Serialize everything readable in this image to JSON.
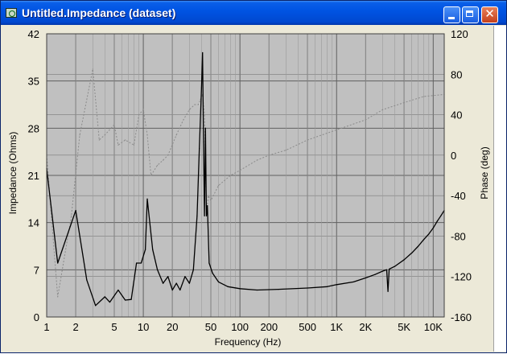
{
  "window": {
    "title": "Untitled.Impedance (dataset)",
    "controls": [
      "minimize",
      "maximize",
      "close"
    ],
    "colors": {
      "titlebar": "#0054e3",
      "plot_background": "#c0c0c0",
      "grid": "#606060",
      "primary_trace": "#000000",
      "secondary_trace": "#8a8a8a"
    }
  },
  "chart_data": {
    "type": "line",
    "xlabel": "Frequency (Hz)",
    "ylabel": "Impedance (Ohms)",
    "y2label": "Phase (deg)",
    "xscale": "log",
    "xlim": [
      1,
      13000
    ],
    "ylim": [
      0,
      42
    ],
    "y2lim": [
      -160,
      120
    ],
    "grid": true,
    "x_ticks": [
      {
        "value": 1,
        "label": "1"
      },
      {
        "value": 2,
        "label": "2"
      },
      {
        "value": 5,
        "label": "5"
      },
      {
        "value": 10,
        "label": "10"
      },
      {
        "value": 20,
        "label": "20"
      },
      {
        "value": 50,
        "label": "50"
      },
      {
        "value": 100,
        "label": "100"
      },
      {
        "value": 200,
        "label": "200"
      },
      {
        "value": 500,
        "label": "500"
      },
      {
        "value": 1000,
        "label": "1K"
      },
      {
        "value": 2000,
        "label": "2K"
      },
      {
        "value": 5000,
        "label": "5K"
      },
      {
        "value": 10000,
        "label": "10K"
      }
    ],
    "y_ticks": [
      {
        "value": 0,
        "label": "0"
      },
      {
        "value": 7,
        "label": "7"
      },
      {
        "value": 14,
        "label": "14"
      },
      {
        "value": 21,
        "label": "21"
      },
      {
        "value": 28,
        "label": "28"
      },
      {
        "value": 35,
        "label": "35"
      },
      {
        "value": 42,
        "label": "42"
      }
    ],
    "y2_ticks": [
      {
        "value": -160,
        "label": "-160"
      },
      {
        "value": -120,
        "label": "-120"
      },
      {
        "value": -80,
        "label": "-80"
      },
      {
        "value": -40,
        "label": "-40"
      },
      {
        "value": 0,
        "label": "0"
      },
      {
        "value": 40,
        "label": "40"
      },
      {
        "value": 80,
        "label": "80"
      },
      {
        "value": 120,
        "label": "120"
      }
    ],
    "series": [
      {
        "axis": "left",
        "style": "solid",
        "points": [
          [
            1.0,
            22
          ],
          [
            1.3,
            8
          ],
          [
            2.0,
            15.8
          ],
          [
            2.6,
            5.5
          ],
          [
            3.2,
            1.7
          ],
          [
            4.0,
            3.0
          ],
          [
            4.5,
            2.2
          ],
          [
            5.5,
            4.0
          ],
          [
            6.5,
            2.5
          ],
          [
            7.5,
            2.6
          ],
          [
            8.5,
            8
          ],
          [
            9.5,
            8
          ],
          [
            10.5,
            10
          ],
          [
            11,
            17.5
          ],
          [
            12.5,
            10
          ],
          [
            14,
            7
          ],
          [
            16,
            5
          ],
          [
            18,
            6
          ],
          [
            20,
            4.0
          ],
          [
            22,
            5.0
          ],
          [
            24,
            4.0
          ],
          [
            27,
            6.0
          ],
          [
            30,
            5.0
          ],
          [
            33,
            7.0
          ],
          [
            36,
            15
          ],
          [
            38,
            25
          ],
          [
            40,
            34
          ],
          [
            41,
            39.2
          ],
          [
            42,
            26
          ],
          [
            43,
            15
          ],
          [
            44,
            28
          ],
          [
            45,
            15
          ],
          [
            46,
            16.5
          ],
          [
            48,
            8
          ],
          [
            52,
            6.5
          ],
          [
            60,
            5.2
          ],
          [
            75,
            4.5
          ],
          [
            100,
            4.2
          ],
          [
            150,
            4.0
          ],
          [
            250,
            4.1
          ],
          [
            500,
            4.3
          ],
          [
            800,
            4.5
          ],
          [
            1000,
            4.8
          ],
          [
            1500,
            5.2
          ],
          [
            2000,
            5.8
          ],
          [
            2500,
            6.3
          ],
          [
            3000,
            6.8
          ],
          [
            3300,
            7.0
          ],
          [
            3400,
            3.8
          ],
          [
            3500,
            7.1
          ],
          [
            4000,
            7.5
          ],
          [
            5000,
            8.5
          ],
          [
            6000,
            9.5
          ],
          [
            7000,
            10.5
          ],
          [
            8000,
            11.5
          ],
          [
            9000,
            12.3
          ],
          [
            10000,
            13.2
          ],
          [
            11000,
            14.2
          ],
          [
            12000,
            15.0
          ],
          [
            13000,
            15.8
          ]
        ]
      },
      {
        "axis": "right",
        "style": "dashed",
        "points": [
          [
            1.0,
            0
          ],
          [
            1.3,
            -140
          ],
          [
            1.8,
            -60
          ],
          [
            2.2,
            20
          ],
          [
            3.0,
            85
          ],
          [
            3.5,
            15
          ],
          [
            4.0,
            20
          ],
          [
            5.0,
            30
          ],
          [
            5.5,
            10
          ],
          [
            6.5,
            15
          ],
          [
            8.0,
            10
          ],
          [
            9.0,
            40
          ],
          [
            10.0,
            45
          ],
          [
            11.0,
            20
          ],
          [
            12.0,
            -20
          ],
          [
            14.0,
            -10
          ],
          [
            16.0,
            -5
          ],
          [
            18.0,
            0
          ],
          [
            22.0,
            20
          ],
          [
            26.0,
            35
          ],
          [
            30.0,
            45
          ],
          [
            34.0,
            50
          ],
          [
            37.0,
            50
          ],
          [
            39.0,
            55
          ],
          [
            41.0,
            60
          ],
          [
            43.0,
            40
          ],
          [
            45.0,
            -60
          ],
          [
            47.0,
            -40
          ],
          [
            50.0,
            -45
          ],
          [
            60.0,
            -30
          ],
          [
            80.0,
            -20
          ],
          [
            100.0,
            -15
          ],
          [
            150.0,
            -5
          ],
          [
            200.0,
            0
          ],
          [
            300.0,
            5
          ],
          [
            500.0,
            15
          ],
          [
            1000.0,
            25
          ],
          [
            2000.0,
            35
          ],
          [
            3000.0,
            45
          ],
          [
            5000.0,
            52
          ],
          [
            8000.0,
            58
          ],
          [
            13000.0,
            60
          ]
        ]
      }
    ]
  }
}
